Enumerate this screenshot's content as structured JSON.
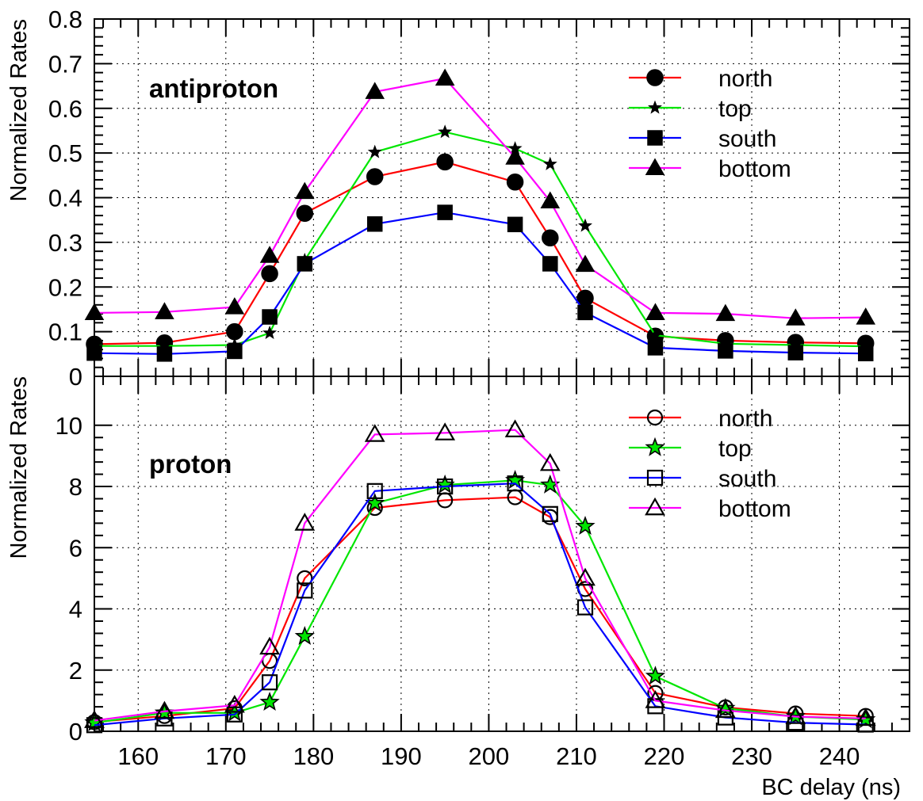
{
  "chart_data": {
    "type": "line",
    "xlabel": "BC delay (ns)",
    "xlim": [
      155,
      248
    ],
    "x_ticks": [
      160,
      170,
      180,
      190,
      200,
      210,
      220,
      230,
      240
    ],
    "grid": true,
    "x": [
      155,
      163,
      171,
      175,
      179,
      187,
      195,
      203,
      207,
      211,
      219,
      227,
      235,
      243
    ],
    "panels": [
      {
        "label": "antiproton",
        "ylabel": "Normalized Rates",
        "ylim": [
          0,
          0.8
        ],
        "y_ticks": [
          "0",
          "0.1",
          "0.2",
          "0.3",
          "0.4",
          "0.5",
          "0.6",
          "0.7",
          "0.8"
        ],
        "legend_position": "top-right",
        "marker_fill": "filled",
        "series": [
          {
            "name": "north",
            "color": "#ff0000",
            "marker": "circle",
            "values": [
              0.072,
              0.075,
              0.1,
              0.23,
              0.365,
              0.447,
              0.48,
              0.435,
              0.31,
              0.175,
              0.09,
              0.08,
              0.076,
              0.074
            ]
          },
          {
            "name": "top",
            "color": "#00e600",
            "marker": "star",
            "values": [
              0.068,
              0.068,
              0.07,
              0.097,
              0.26,
              0.502,
              0.547,
              0.51,
              0.475,
              0.337,
              0.092,
              0.073,
              0.07,
              0.067
            ]
          },
          {
            "name": "south",
            "color": "#0000ff",
            "marker": "square",
            "values": [
              0.052,
              0.05,
              0.056,
              0.133,
              0.252,
              0.341,
              0.367,
              0.34,
              0.252,
              0.143,
              0.064,
              0.057,
              0.053,
              0.051
            ]
          },
          {
            "name": "bottom",
            "color": "#ff00ff",
            "marker": "triangle",
            "values": [
              0.142,
              0.144,
              0.155,
              0.27,
              0.413,
              0.637,
              0.667,
              0.49,
              0.392,
              0.25,
              0.142,
              0.14,
              0.13,
              0.132
            ]
          }
        ]
      },
      {
        "label": "proton",
        "ylabel": "Normalized Rates",
        "ylim": [
          0,
          11.6
        ],
        "y_ticks": [
          "0",
          "2",
          "4",
          "6",
          "8",
          "10"
        ],
        "legend_position": "top-right",
        "marker_fill": "open",
        "series": [
          {
            "name": "north",
            "color": "#ff0000",
            "marker": "circle",
            "values": [
              0.3,
              0.5,
              0.75,
              2.3,
              5.0,
              7.3,
              7.55,
              7.65,
              7.0,
              4.65,
              1.25,
              0.78,
              0.58,
              0.5
            ]
          },
          {
            "name": "top",
            "color": "#00e600",
            "marker": "star",
            "values": [
              0.28,
              0.6,
              0.6,
              0.95,
              3.1,
              7.45,
              8.05,
              8.2,
              8.05,
              6.7,
              1.8,
              0.75,
              0.48,
              0.38
            ]
          },
          {
            "name": "south",
            "color": "#0000ff",
            "marker": "square",
            "values": [
              0.2,
              0.42,
              0.55,
              1.6,
              4.6,
              7.85,
              8.0,
              8.1,
              7.1,
              4.05,
              0.82,
              0.45,
              0.28,
              0.22
            ]
          },
          {
            "name": "bottom",
            "color": "#ff00ff",
            "marker": "triangle",
            "values": [
              0.35,
              0.65,
              0.85,
              2.75,
              6.8,
              9.7,
              9.75,
              9.85,
              8.75,
              5.0,
              1.0,
              0.68,
              0.48,
              0.42
            ]
          }
        ]
      }
    ]
  }
}
